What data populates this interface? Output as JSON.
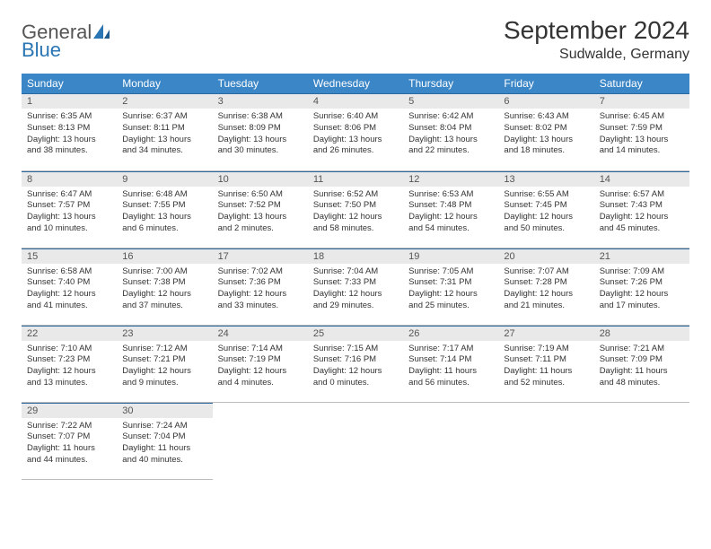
{
  "brand": {
    "part1": "General",
    "part2": "Blue"
  },
  "header": {
    "month_title": "September 2024",
    "location": "Sudwalde, Germany"
  },
  "style": {
    "header_bg": "#3b86c6",
    "header_text": "#ffffff",
    "daynum_bg": "#e9e9e9",
    "daynum_border": "#2a6aa0",
    "cell_border": "#bcbcbc",
    "title_fontsize": 28,
    "location_fontsize": 16,
    "th_fontsize": 12,
    "cell_fontsize": 9.5
  },
  "weekdays": [
    "Sunday",
    "Monday",
    "Tuesday",
    "Wednesday",
    "Thursday",
    "Friday",
    "Saturday"
  ],
  "weeks": [
    [
      {
        "n": "1",
        "sr": "6:35 AM",
        "ss": "8:13 PM",
        "dh": "13",
        "dm": "38"
      },
      {
        "n": "2",
        "sr": "6:37 AM",
        "ss": "8:11 PM",
        "dh": "13",
        "dm": "34"
      },
      {
        "n": "3",
        "sr": "6:38 AM",
        "ss": "8:09 PM",
        "dh": "13",
        "dm": "30"
      },
      {
        "n": "4",
        "sr": "6:40 AM",
        "ss": "8:06 PM",
        "dh": "13",
        "dm": "26"
      },
      {
        "n": "5",
        "sr": "6:42 AM",
        "ss": "8:04 PM",
        "dh": "13",
        "dm": "22"
      },
      {
        "n": "6",
        "sr": "6:43 AM",
        "ss": "8:02 PM",
        "dh": "13",
        "dm": "18"
      },
      {
        "n": "7",
        "sr": "6:45 AM",
        "ss": "7:59 PM",
        "dh": "13",
        "dm": "14"
      }
    ],
    [
      {
        "n": "8",
        "sr": "6:47 AM",
        "ss": "7:57 PM",
        "dh": "13",
        "dm": "10"
      },
      {
        "n": "9",
        "sr": "6:48 AM",
        "ss": "7:55 PM",
        "dh": "13",
        "dm": "6"
      },
      {
        "n": "10",
        "sr": "6:50 AM",
        "ss": "7:52 PM",
        "dh": "13",
        "dm": "2"
      },
      {
        "n": "11",
        "sr": "6:52 AM",
        "ss": "7:50 PM",
        "dh": "12",
        "dm": "58"
      },
      {
        "n": "12",
        "sr": "6:53 AM",
        "ss": "7:48 PM",
        "dh": "12",
        "dm": "54"
      },
      {
        "n": "13",
        "sr": "6:55 AM",
        "ss": "7:45 PM",
        "dh": "12",
        "dm": "50"
      },
      {
        "n": "14",
        "sr": "6:57 AM",
        "ss": "7:43 PM",
        "dh": "12",
        "dm": "45"
      }
    ],
    [
      {
        "n": "15",
        "sr": "6:58 AM",
        "ss": "7:40 PM",
        "dh": "12",
        "dm": "41"
      },
      {
        "n": "16",
        "sr": "7:00 AM",
        "ss": "7:38 PM",
        "dh": "12",
        "dm": "37"
      },
      {
        "n": "17",
        "sr": "7:02 AM",
        "ss": "7:36 PM",
        "dh": "12",
        "dm": "33"
      },
      {
        "n": "18",
        "sr": "7:04 AM",
        "ss": "7:33 PM",
        "dh": "12",
        "dm": "29"
      },
      {
        "n": "19",
        "sr": "7:05 AM",
        "ss": "7:31 PM",
        "dh": "12",
        "dm": "25"
      },
      {
        "n": "20",
        "sr": "7:07 AM",
        "ss": "7:28 PM",
        "dh": "12",
        "dm": "21"
      },
      {
        "n": "21",
        "sr": "7:09 AM",
        "ss": "7:26 PM",
        "dh": "12",
        "dm": "17"
      }
    ],
    [
      {
        "n": "22",
        "sr": "7:10 AM",
        "ss": "7:23 PM",
        "dh": "12",
        "dm": "13"
      },
      {
        "n": "23",
        "sr": "7:12 AM",
        "ss": "7:21 PM",
        "dh": "12",
        "dm": "9"
      },
      {
        "n": "24",
        "sr": "7:14 AM",
        "ss": "7:19 PM",
        "dh": "12",
        "dm": "4"
      },
      {
        "n": "25",
        "sr": "7:15 AM",
        "ss": "7:16 PM",
        "dh": "12",
        "dm": "0"
      },
      {
        "n": "26",
        "sr": "7:17 AM",
        "ss": "7:14 PM",
        "dh": "11",
        "dm": "56"
      },
      {
        "n": "27",
        "sr": "7:19 AM",
        "ss": "7:11 PM",
        "dh": "11",
        "dm": "52"
      },
      {
        "n": "28",
        "sr": "7:21 AM",
        "ss": "7:09 PM",
        "dh": "11",
        "dm": "48"
      }
    ],
    [
      {
        "n": "29",
        "sr": "7:22 AM",
        "ss": "7:07 PM",
        "dh": "11",
        "dm": "44"
      },
      {
        "n": "30",
        "sr": "7:24 AM",
        "ss": "7:04 PM",
        "dh": "11",
        "dm": "40"
      },
      null,
      null,
      null,
      null,
      null
    ]
  ],
  "labels": {
    "sunrise": "Sunrise:",
    "sunset": "Sunset:",
    "daylight_prefix": "Daylight:",
    "hours_word": "hours",
    "and_word": "and",
    "minutes_word": "minutes."
  }
}
